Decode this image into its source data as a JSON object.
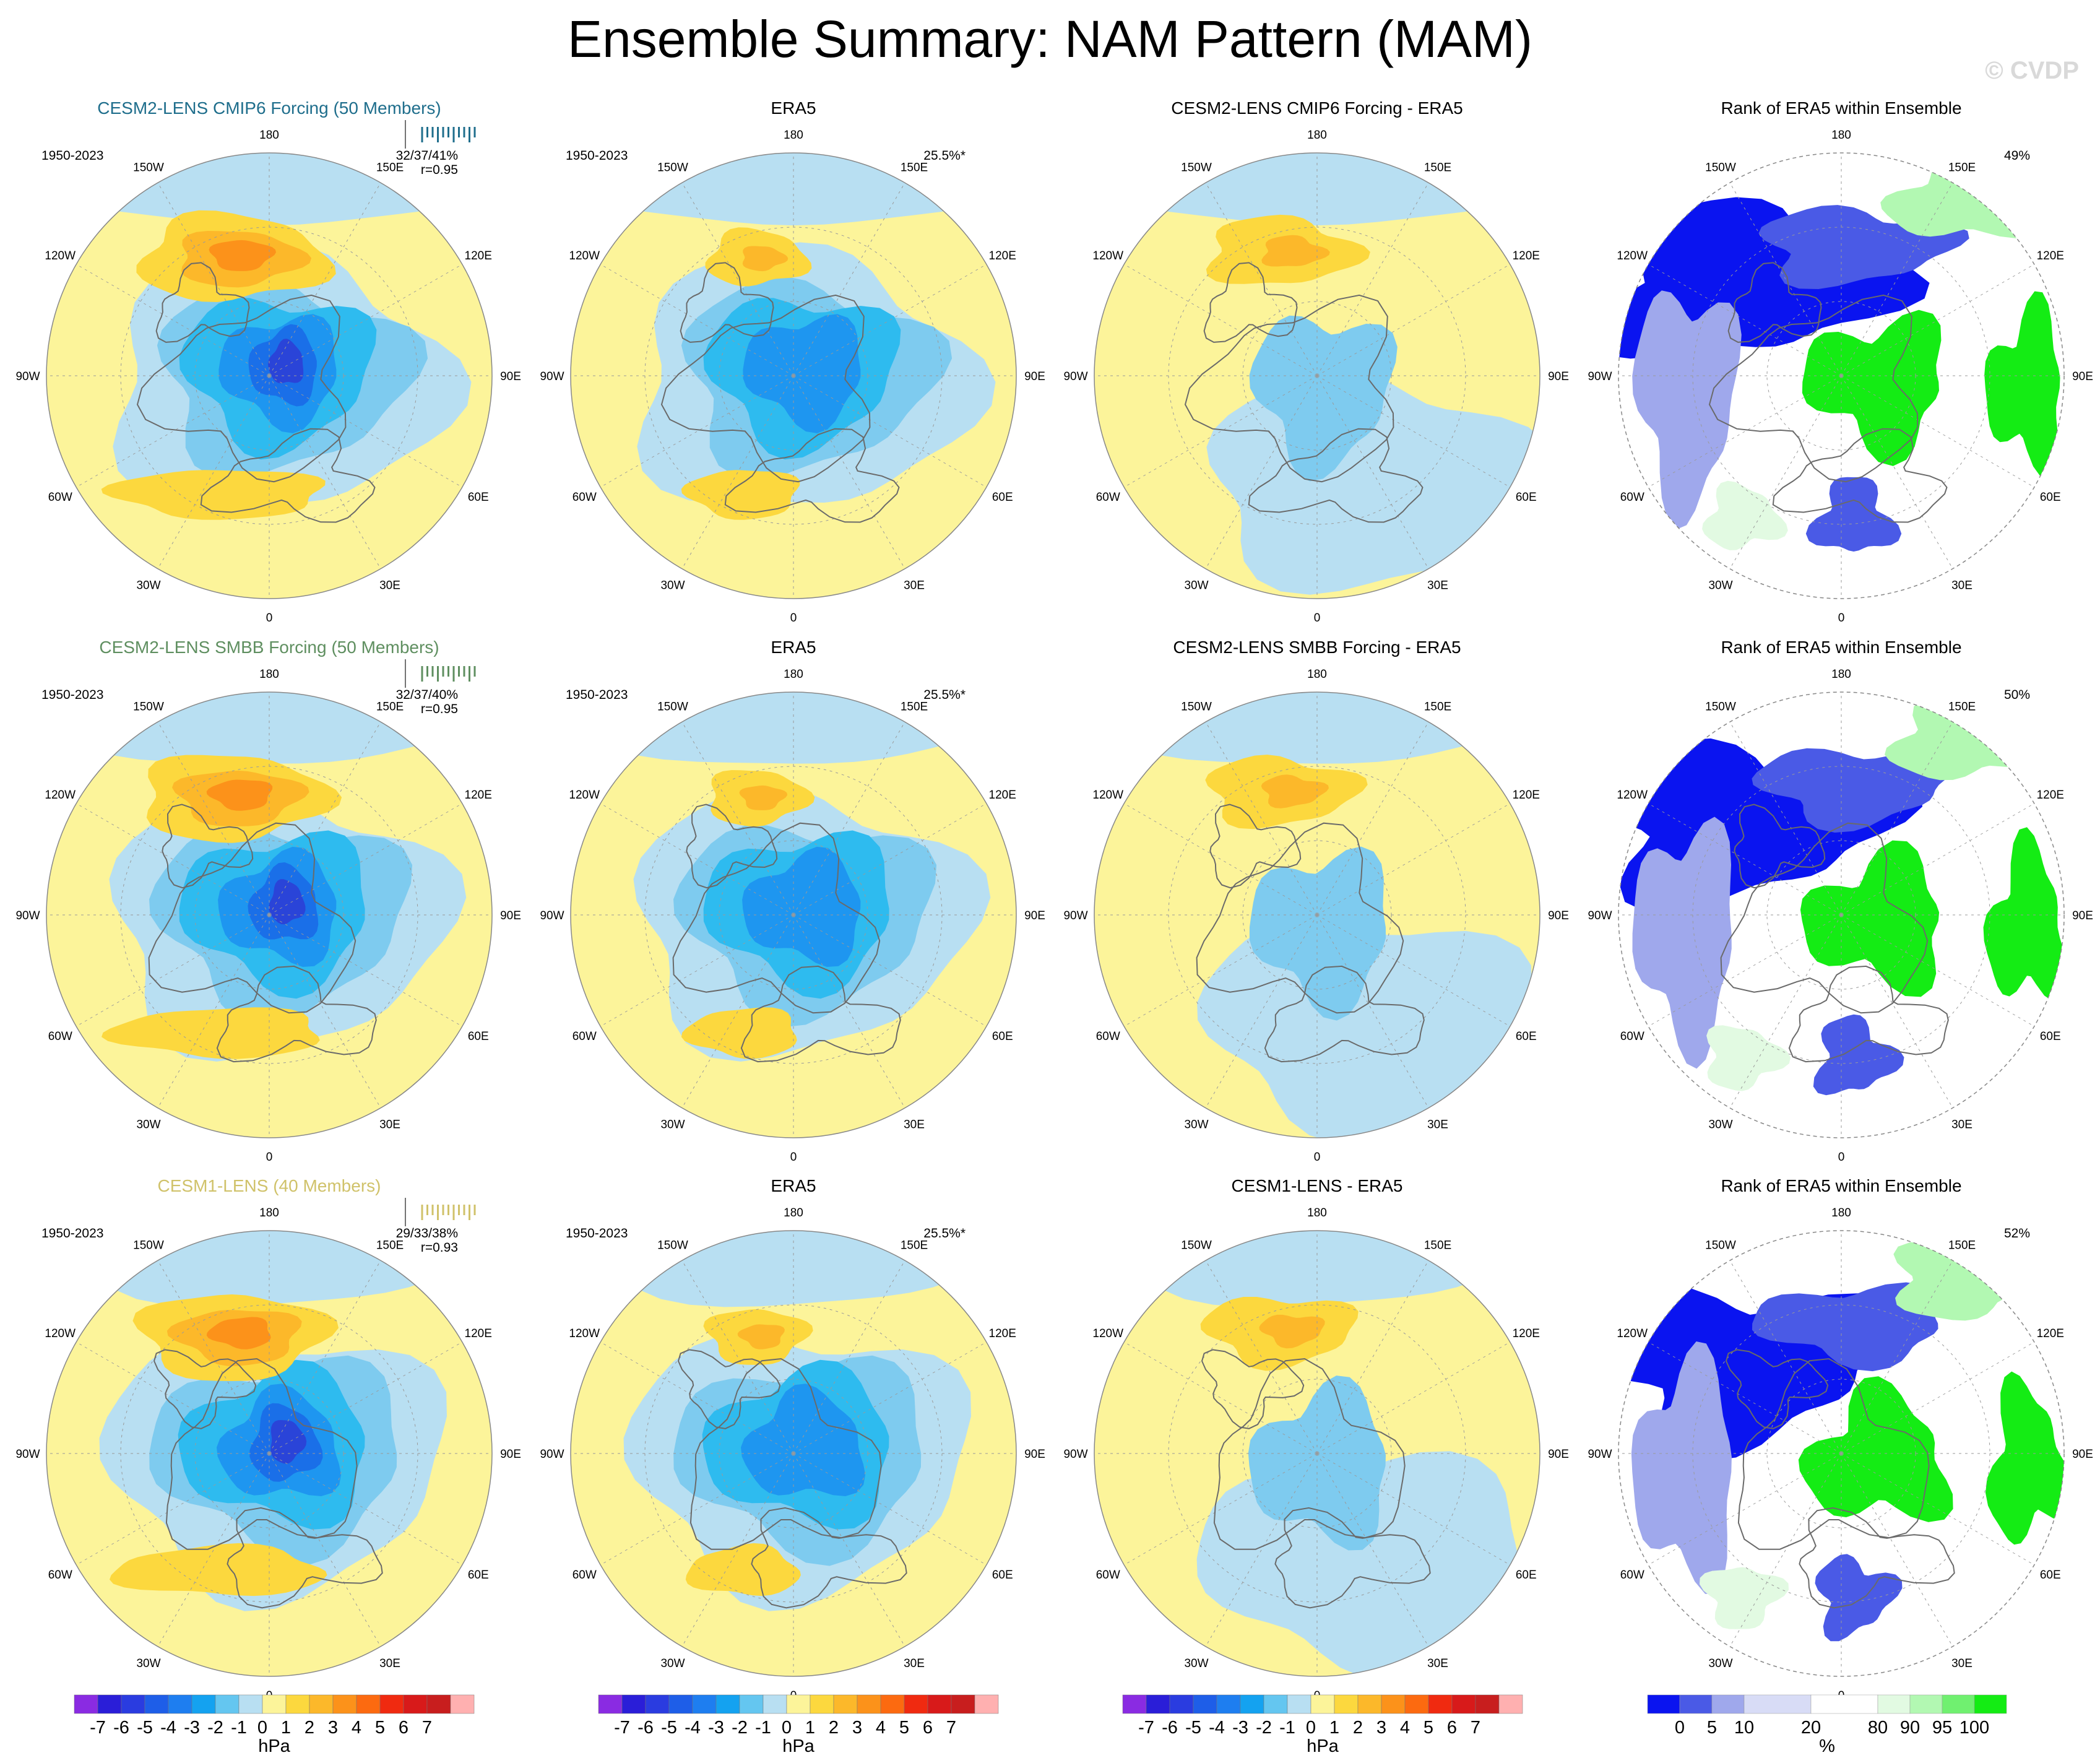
{
  "title": "Ensemble Summary: NAM Pattern (MAM)",
  "watermark": "© CVDP",
  "colors": {
    "land": "#fcf49a",
    "ocean": "#b8dff2",
    "coast": "#6a6a6a",
    "grid": "#9a9a9a",
    "neg_scale": [
      "#b8dff2",
      "#7ecbef",
      "#2ebbef",
      "#1e96f0",
      "#1a6fe8",
      "#2a44d8",
      "#3a2ad0",
      "#7a2ce0"
    ],
    "pos_scale": [
      "#fcf49a",
      "#fcd83e",
      "#fcb82a",
      "#fc921a",
      "#fc6a10",
      "#f23a10",
      "#d81a1a",
      "#ffb0b0"
    ],
    "rank_scale": [
      "#0a14f0",
      "#4a5ae6",
      "#9fa8ec",
      "#d8dcf6",
      "#ffffff",
      "#e2fae2",
      "#b2f8b2",
      "#70f070",
      "#14ec14"
    ]
  },
  "longitude_labels": [
    "180",
    "150E",
    "120E",
    "90E",
    "60E",
    "30E",
    "0",
    "30W",
    "60W",
    "90W",
    "120W",
    "150W"
  ],
  "rows": [
    {
      "model": {
        "title": "CESM2-LENS CMIP6 Forcing (50 Members)",
        "color": "#1f6e8c",
        "period": "1950-2023",
        "stat": "32/37/41%",
        "corr": "r=0.95"
      },
      "era5": {
        "title": "ERA5",
        "period": "1950-2023",
        "pct": "25.5%*"
      },
      "diff": {
        "title": "CESM2-LENS CMIP6 Forcing - ERA5"
      },
      "rank": {
        "title": "Rank of ERA5 within Ensemble",
        "pct": "49%"
      }
    },
    {
      "model": {
        "title": "CESM2-LENS SMBB Forcing (50 Members)",
        "color": "#5f8f60",
        "period": "1950-2023",
        "stat": "32/37/40%",
        "corr": "r=0.95"
      },
      "era5": {
        "title": "ERA5",
        "period": "1950-2023",
        "pct": "25.5%*"
      },
      "diff": {
        "title": "CESM2-LENS SMBB Forcing - ERA5"
      },
      "rank": {
        "title": "Rank of ERA5 within Ensemble",
        "pct": "50%"
      }
    },
    {
      "model": {
        "title": "CESM1-LENS (40 Members)",
        "color": "#d0c26a",
        "period": "1950-2023",
        "stat": "29/33/38%",
        "corr": "r=0.93"
      },
      "era5": {
        "title": "ERA5",
        "period": "1950-2023",
        "pct": "25.5%*"
      },
      "diff": {
        "title": "CESM1-LENS - ERA5"
      },
      "rank": {
        "title": "Rank of ERA5 within Ensemble",
        "pct": "52%"
      }
    }
  ],
  "colorbar_hpa": {
    "labels": [
      "-7",
      "-6",
      "-5",
      "-4",
      "-3",
      "-2",
      "-1",
      "0",
      "1",
      "2",
      "3",
      "4",
      "5",
      "6",
      "7"
    ],
    "colors": [
      "#8a2be2",
      "#2a1ed8",
      "#2a3ce0",
      "#1e5ee8",
      "#1e7ef0",
      "#14a2f0",
      "#64c6f0",
      "#b8dff2",
      "#fcf49a",
      "#fcd83e",
      "#fcb82a",
      "#fc921a",
      "#fc6a10",
      "#f02a10",
      "#d81a1a",
      "#c81e1e",
      "#ffb0b0"
    ],
    "unit": "hPa"
  },
  "colorbar_rank": {
    "labels": [
      "0",
      "5",
      "10",
      "20",
      "80",
      "90",
      "95",
      "100"
    ],
    "colors": [
      "#0a14f0",
      "#4a5ae6",
      "#9fa8ec",
      "#d8dcf6",
      "#ffffff",
      "#e2fae2",
      "#b2f8b2",
      "#70f070",
      "#14ec14"
    ],
    "unit": "%"
  },
  "chart_data": [
    {
      "type": "heatmap",
      "title": "CESM2-LENS CMIP6 Forcing (50 Members)",
      "projection": "north polar stereographic",
      "period": "1950-2023",
      "unit": "hPa",
      "pattern_features": [
        {
          "feature": "Arctic low centre",
          "value_hPa": -6
        },
        {
          "feature": "North Pacific high",
          "value_hPa": 4
        },
        {
          "feature": "North Atlantic high",
          "value_hPa": 2
        }
      ]
    },
    {
      "type": "heatmap",
      "title": "ERA5",
      "period": "1950-2023",
      "unit": "hPa",
      "variance_explained": "25.5%*",
      "pattern_features": [
        {
          "feature": "Arctic low centre",
          "value_hPa": -4
        },
        {
          "feature": "North Pacific high",
          "value_hPa": 2
        },
        {
          "feature": "North Atlantic high",
          "value_hPa": 2
        }
      ]
    },
    {
      "type": "heatmap",
      "title": "Rank of ERA5 within Ensemble",
      "unit": "%",
      "bins": [
        0,
        5,
        10,
        20,
        80,
        90,
        95,
        100
      ],
      "summary_pct": [
        49,
        50,
        52
      ]
    }
  ]
}
